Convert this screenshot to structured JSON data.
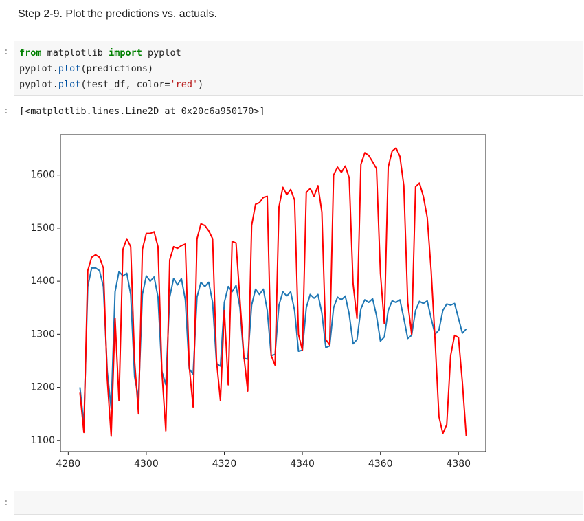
{
  "markdown": "Step 2-9. Plot the predictions vs. actuals.",
  "prompts": [
    ":",
    ":",
    ":"
  ],
  "code": [
    [
      "from",
      " matplotlib ",
      "import",
      " pyplot"
    ],
    [
      "pyplot.",
      "plot",
      "(predictions)"
    ],
    [
      "pyplot.",
      "plot",
      "(test_df, color=",
      "'red'",
      ")"
    ]
  ],
  "output": "[<matplotlib.lines.Line2D at 0x20c6a950170>]",
  "chart_data": {
    "type": "line",
    "x": [
      4283,
      4284,
      4285,
      4286,
      4287,
      4288,
      4289,
      4290,
      4291,
      4292,
      4293,
      4294,
      4295,
      4296,
      4297,
      4298,
      4299,
      4300,
      4301,
      4302,
      4303,
      4304,
      4305,
      4306,
      4307,
      4308,
      4309,
      4310,
      4311,
      4312,
      4313,
      4314,
      4315,
      4316,
      4317,
      4318,
      4319,
      4320,
      4321,
      4322,
      4323,
      4324,
      4325,
      4326,
      4327,
      4328,
      4329,
      4330,
      4331,
      4332,
      4333,
      4334,
      4335,
      4336,
      4337,
      4338,
      4339,
      4340,
      4341,
      4342,
      4343,
      4344,
      4345,
      4346,
      4347,
      4348,
      4349,
      4350,
      4351,
      4352,
      4353,
      4354,
      4355,
      4356,
      4357,
      4358,
      4359,
      4360,
      4361,
      4362,
      4363,
      4364,
      4365,
      4366,
      4367,
      4368,
      4369,
      4370,
      4371,
      4372,
      4373,
      4374,
      4375,
      4376,
      4377,
      4378,
      4379,
      4380,
      4381,
      4382
    ],
    "series": [
      {
        "color": "#1f77b4",
        "values": [
          1200,
          1130,
          1390,
          1425,
          1425,
          1420,
          1390,
          1230,
          1160,
          1380,
          1418,
          1410,
          1415,
          1375,
          1220,
          1180,
          1375,
          1410,
          1400,
          1408,
          1370,
          1230,
          1205,
          1370,
          1405,
          1393,
          1405,
          1365,
          1235,
          1225,
          1370,
          1398,
          1390,
          1398,
          1360,
          1245,
          1240,
          1360,
          1390,
          1380,
          1392,
          1350,
          1255,
          1253,
          1355,
          1385,
          1375,
          1385,
          1345,
          1260,
          1262,
          1355,
          1380,
          1372,
          1380,
          1345,
          1268,
          1270,
          1350,
          1375,
          1368,
          1375,
          1340,
          1275,
          1278,
          1350,
          1370,
          1365,
          1372,
          1338,
          1282,
          1290,
          1348,
          1365,
          1360,
          1367,
          1335,
          1287,
          1295,
          1345,
          1363,
          1360,
          1365,
          1330,
          1292,
          1298,
          1345,
          1362,
          1358,
          1363,
          1330,
          1300,
          1308,
          1345,
          1357,
          1355,
          1358,
          1330,
          1302,
          1310
        ]
      },
      {
        "color": "#ff0000",
        "values": [
          1190,
          1115,
          1420,
          1445,
          1450,
          1445,
          1425,
          1215,
          1108,
          1330,
          1175,
          1460,
          1480,
          1465,
          1250,
          1150,
          1460,
          1490,
          1490,
          1493,
          1465,
          1230,
          1118,
          1440,
          1465,
          1462,
          1467,
          1470,
          1240,
          1163,
          1480,
          1508,
          1505,
          1495,
          1480,
          1250,
          1175,
          1345,
          1205,
          1475,
          1472,
          1365,
          1260,
          1193,
          1505,
          1545,
          1548,
          1558,
          1560,
          1260,
          1242,
          1540,
          1577,
          1563,
          1573,
          1553,
          1300,
          1270,
          1567,
          1575,
          1560,
          1580,
          1530,
          1290,
          1280,
          1600,
          1615,
          1605,
          1617,
          1595,
          1395,
          1330,
          1620,
          1642,
          1637,
          1625,
          1612,
          1415,
          1320,
          1615,
          1645,
          1651,
          1635,
          1580,
          1360,
          1300,
          1578,
          1585,
          1560,
          1520,
          1420,
          1290,
          1145,
          1113,
          1130,
          1260,
          1298,
          1294,
          1210,
          1108
        ]
      }
    ],
    "xlim": [
      4278,
      4387
    ],
    "ylim": [
      1079,
      1676
    ],
    "xticks": [
      4280,
      4300,
      4320,
      4340,
      4360,
      4380
    ],
    "yticks": [
      1100,
      1200,
      1300,
      1400,
      1500,
      1600
    ]
  }
}
